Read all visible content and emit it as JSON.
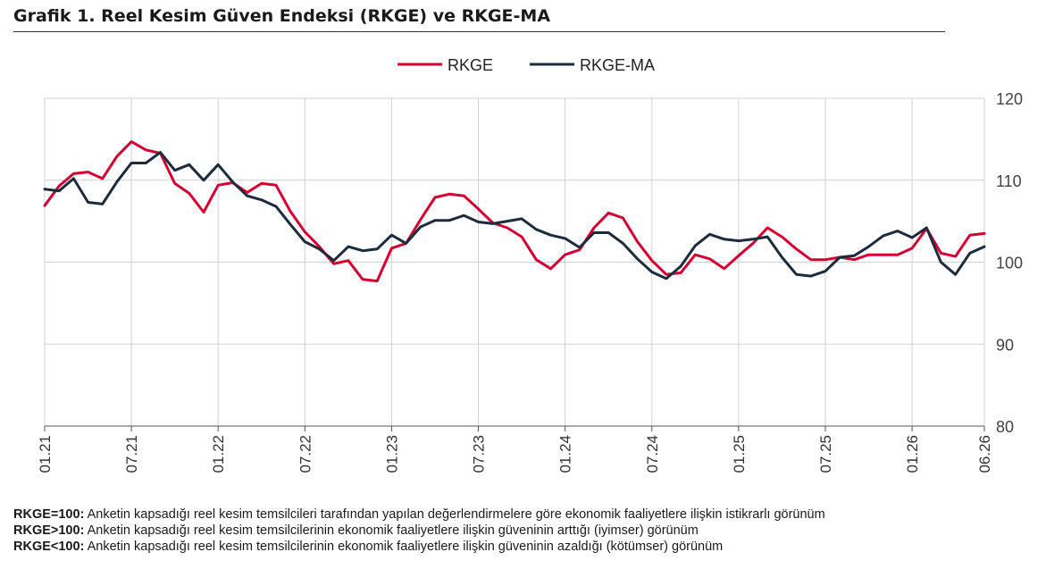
{
  "title": "Grafik 1. Reel Kesim Güven Endeksi (RKGE) ve RKGE-MA",
  "chart_data": {
    "type": "line",
    "x": [
      "01.21",
      "02.21",
      "03.21",
      "04.21",
      "05.21",
      "06.21",
      "07.21",
      "08.21",
      "09.21",
      "10.21",
      "11.21",
      "12.21",
      "01.22",
      "02.22",
      "03.22",
      "04.22",
      "05.22",
      "06.22",
      "07.22",
      "08.22",
      "09.22",
      "10.22",
      "11.22",
      "12.22",
      "01.23",
      "02.23",
      "03.23",
      "04.23",
      "05.23",
      "06.23",
      "07.23",
      "08.23",
      "09.23",
      "10.23",
      "11.23",
      "12.23",
      "01.24",
      "02.24",
      "03.24",
      "04.24",
      "05.24",
      "06.24",
      "07.24",
      "08.24",
      "09.24",
      "10.24",
      "11.24",
      "12.24",
      "01.25",
      "02.25",
      "03.25",
      "04.25",
      "05.25",
      "06.25",
      "07.25",
      "08.25",
      "09.25",
      "10.25",
      "11.25",
      "12.25",
      "01.26",
      "02.26",
      "03.26",
      "04.26",
      "05.26",
      "06.26"
    ],
    "x_tick_labels": [
      "01.21",
      "07.21",
      "01.22",
      "07.22",
      "01.23",
      "07.23",
      "01.24",
      "07.24",
      "01.25",
      "07.25",
      "01.26",
      "06.26"
    ],
    "series": [
      {
        "name": "RKGE",
        "color": "#d50032",
        "values": [
          106.9,
          109.3,
          110.8,
          111.0,
          110.2,
          112.9,
          114.7,
          113.7,
          113.3,
          109.6,
          108.4,
          106.1,
          109.4,
          109.7,
          108.5,
          109.6,
          109.4,
          106.2,
          103.7,
          101.9,
          99.8,
          100.2,
          97.9,
          97.7,
          101.7,
          102.3,
          105.2,
          107.9,
          108.3,
          108.1,
          106.5,
          104.8,
          104.2,
          103.1,
          100.3,
          99.2,
          100.9,
          101.5,
          104.2,
          106.0,
          105.4,
          102.5,
          100.2,
          98.5,
          98.7,
          100.9,
          100.4,
          99.2,
          100.8,
          102.3,
          104.2,
          103.1,
          101.6,
          100.3,
          100.3,
          100.6,
          100.3,
          100.9,
          100.9,
          100.9,
          101.7,
          104.1,
          101.1,
          100.7,
          103.3,
          103.5
        ]
      },
      {
        "name": "RKGE-MA",
        "color": "#1d2c3c",
        "values": [
          108.9,
          108.7,
          110.2,
          107.3,
          107.1,
          109.8,
          112.1,
          112.1,
          113.4,
          111.2,
          111.9,
          110.0,
          111.9,
          109.8,
          108.1,
          107.6,
          106.8,
          104.6,
          102.5,
          101.6,
          100.2,
          101.9,
          101.4,
          101.6,
          103.3,
          102.3,
          104.3,
          105.1,
          105.1,
          105.7,
          104.9,
          104.7,
          105.0,
          105.3,
          104.0,
          103.3,
          102.9,
          101.8,
          103.6,
          103.6,
          102.3,
          100.4,
          98.8,
          98.0,
          99.5,
          102.0,
          103.4,
          102.8,
          102.6,
          102.8,
          103.1,
          100.6,
          98.5,
          98.3,
          98.9,
          100.6,
          100.8,
          101.9,
          103.2,
          103.8,
          103.0,
          104.2,
          100.0,
          98.5,
          101.1,
          101.9
        ]
      }
    ],
    "y_ticks": [
      80,
      90,
      100,
      110,
      120
    ],
    "ylim": [
      80,
      120
    ],
    "grid": "vertical at x tick labels",
    "legend_position": "top-center",
    "xlabel": "",
    "ylabel": ""
  },
  "notes": [
    {
      "label": "RKGE=100:",
      "text": "Anketin kapsadığı reel kesim temsilcileri tarafından yapılan değerlendirmelere göre ekonomik faaliyetlere ilişkin istikrarlı görünüm"
    },
    {
      "label": "RKGE>100:",
      "text": "Anketin kapsadığı reel kesim temsilcilerinin ekonomik faaliyetlere ilişkin güveninin arttığı (iyimser) görünüm"
    },
    {
      "label": "RKGE<100:",
      "text": "Anketin kapsadığı reel kesim temsilcilerinin ekonomik faaliyetlere ilişkin güveninin azaldığı (kötümser) görünüm"
    }
  ]
}
